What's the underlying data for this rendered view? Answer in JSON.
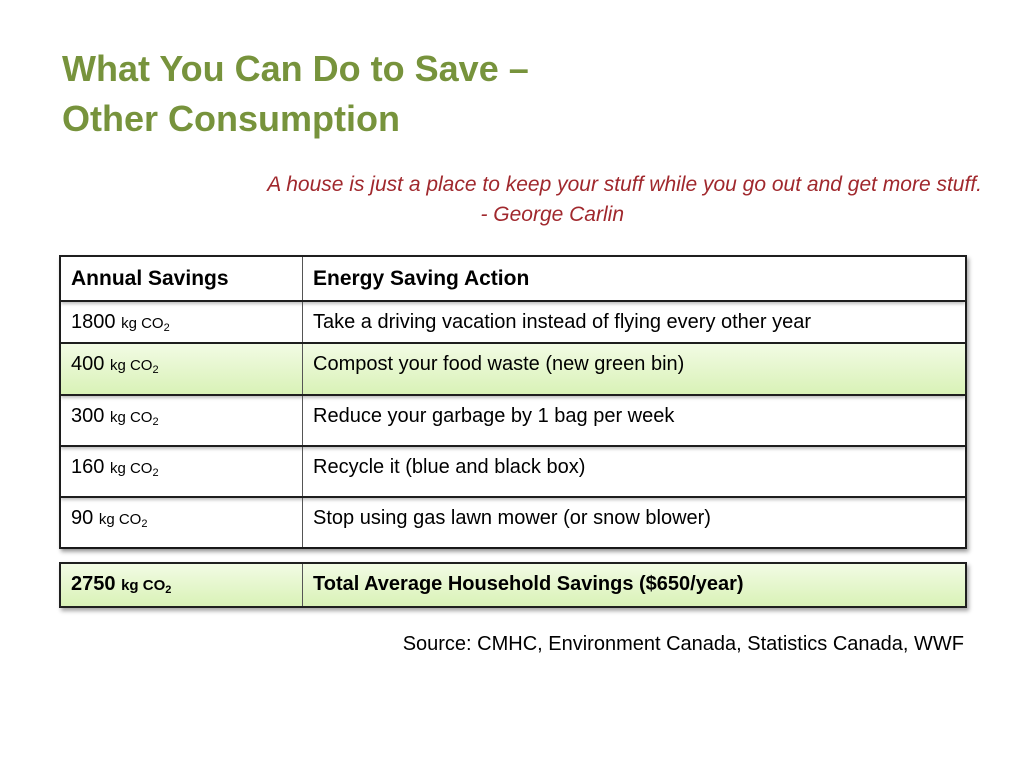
{
  "title": {
    "line1": "What You Can Do to Save –",
    "line2": "Other Consumption"
  },
  "quote": {
    "text": "A house is just a place to keep your stuff while you go out and get more stuff.",
    "attribution": "- George Carlin"
  },
  "colors": {
    "title": "#77933c",
    "quote": "#a0282d",
    "highlight": "#d9f2b7"
  },
  "table": {
    "headers": [
      "Annual Savings",
      "Energy Saving Action"
    ],
    "unit": "kg CO",
    "unit_subscript": "2",
    "rows": [
      {
        "amount": "1800",
        "action": "Take a driving vacation instead of flying every other year"
      },
      {
        "amount": "400",
        "action": "Compost your food waste (new green bin)"
      },
      {
        "amount": "300",
        "action": "Reduce your garbage by 1 bag per week"
      },
      {
        "amount": "160",
        "action": "Recycle it (blue and black box)"
      },
      {
        "amount": "90",
        "action": "Stop using gas lawn mower (or snow blower)"
      }
    ]
  },
  "total": {
    "amount": "2750",
    "action": "Total Average Household Savings ($650/year)"
  },
  "source": "Source: CMHC, Environment Canada, Statistics Canada, WWF"
}
